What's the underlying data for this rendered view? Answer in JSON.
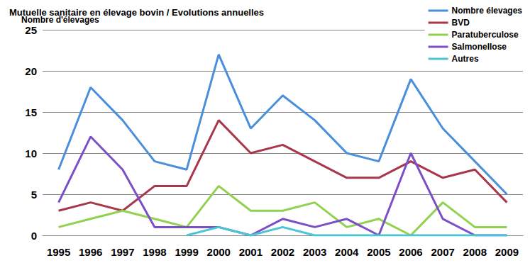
{
  "chart_data": {
    "type": "line",
    "title": "Mutuelle sanitaire en élevage bovin / Evolutions annuelles",
    "y_label": "Nombre d'élevages",
    "categories": [
      "1995",
      "1996",
      "1997",
      "1998",
      "1999",
      "2000",
      "2001",
      "2002",
      "2003",
      "2004",
      "2005",
      "2006",
      "2007",
      "2008",
      "2009"
    ],
    "series": [
      {
        "name": "Nombre élevages",
        "color": "#4a8fdb",
        "values": [
          8,
          18,
          14,
          9,
          8,
          22,
          13,
          17,
          14,
          10,
          9,
          19,
          13,
          9,
          5
        ]
      },
      {
        "name": "BVD",
        "color": "#a8374b",
        "values": [
          3,
          4,
          3,
          6,
          6,
          14,
          10,
          11,
          9,
          7,
          7,
          9,
          7,
          8,
          4
        ]
      },
      {
        "name": "Paratuberculose",
        "color": "#92d050",
        "values": [
          1,
          2,
          3,
          2,
          1,
          6,
          3,
          3,
          4,
          1,
          2,
          0,
          4,
          1,
          1
        ]
      },
      {
        "name": "Salmonellose",
        "color": "#7b4fc6",
        "values": [
          4,
          12,
          8,
          1,
          1,
          1,
          0,
          2,
          1,
          2,
          0,
          10,
          2,
          0,
          0
        ]
      },
      {
        "name": "Autres",
        "color": "#4bc6d6",
        "values": [
          null,
          null,
          null,
          null,
          0,
          1,
          0,
          1,
          0,
          0,
          0,
          0,
          0,
          0,
          0
        ]
      }
    ],
    "ylim": [
      0,
      25
    ],
    "yticks": [
      0,
      5,
      10,
      15,
      20,
      25
    ],
    "grid": true,
    "legend": "top-right"
  }
}
